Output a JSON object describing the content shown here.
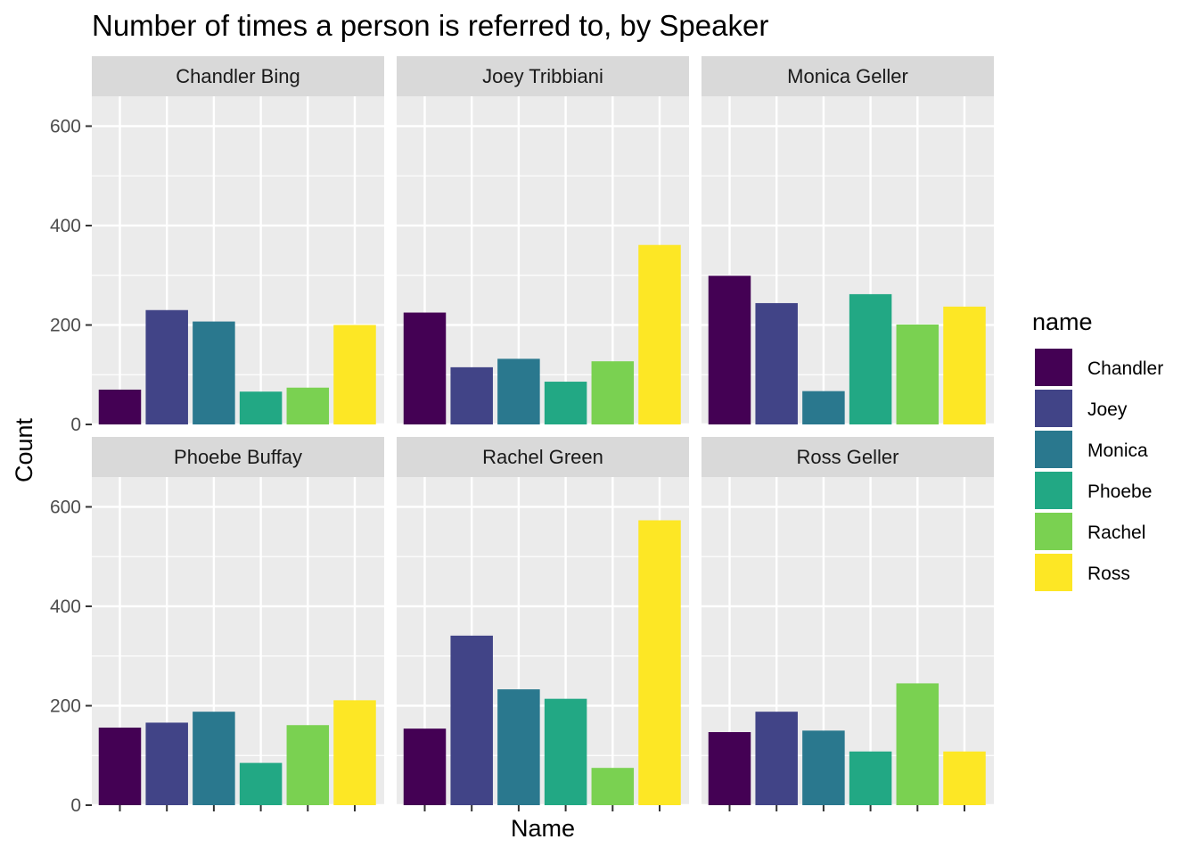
{
  "chart_data": {
    "type": "bar",
    "title": "Number of times a person is referred to, by Speaker",
    "xlabel": "Name",
    "ylabel": "Count",
    "ylim": [
      0,
      660
    ],
    "yticks": [
      0,
      200,
      400,
      600
    ],
    "categories": [
      "Chandler",
      "Joey",
      "Monica",
      "Phoebe",
      "Rachel",
      "Ross"
    ],
    "legend": {
      "title": "name",
      "placement": "right",
      "entries": [
        "Chandler",
        "Joey",
        "Monica",
        "Phoebe",
        "Rachel",
        "Ross"
      ],
      "colors": [
        "#440154",
        "#414487",
        "#2A788E",
        "#22A884",
        "#7AD151",
        "#FDE725"
      ]
    },
    "grid": true,
    "panels": [
      {
        "speaker": "Chandler Bing",
        "values": [
          70,
          230,
          207,
          66,
          74,
          200
        ]
      },
      {
        "speaker": "Joey Tribbiani",
        "values": [
          225,
          115,
          132,
          86,
          127,
          361
        ]
      },
      {
        "speaker": "Monica Geller",
        "values": [
          299,
          244,
          67,
          262,
          201,
          237
        ]
      },
      {
        "speaker": "Phoebe Buffay",
        "values": [
          156,
          166,
          188,
          85,
          161,
          211
        ]
      },
      {
        "speaker": "Rachel Green",
        "values": [
          154,
          341,
          233,
          214,
          75,
          573
        ]
      },
      {
        "speaker": "Ross Geller",
        "values": [
          147,
          188,
          150,
          108,
          245,
          108
        ]
      }
    ]
  }
}
